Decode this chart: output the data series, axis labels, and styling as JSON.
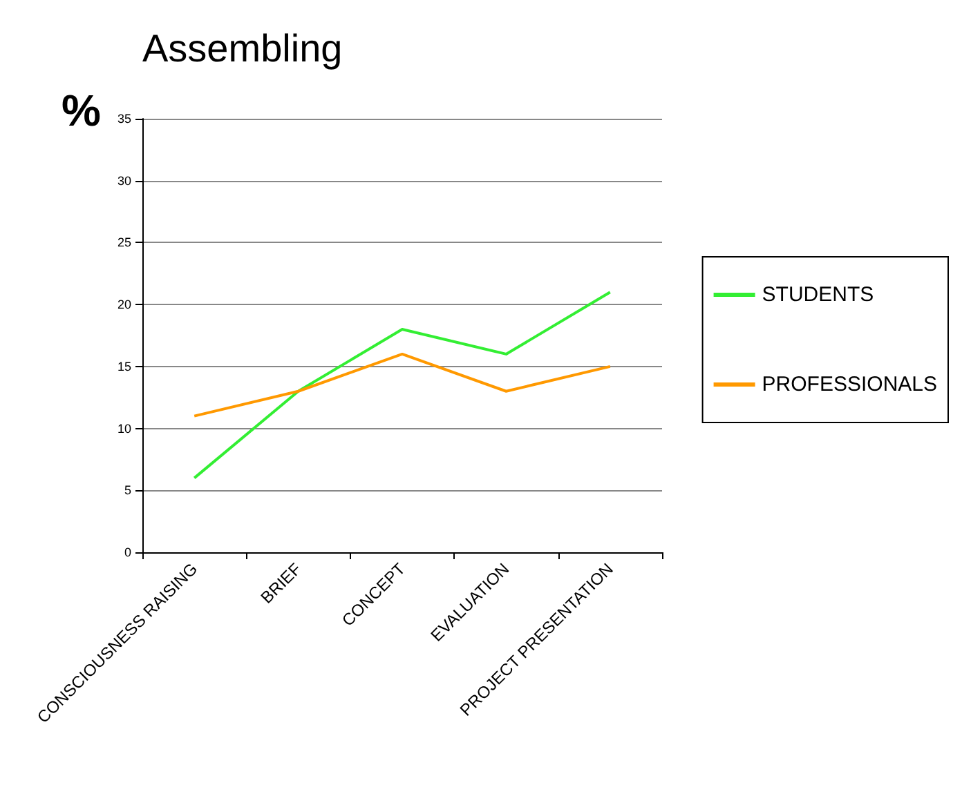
{
  "chart_data": {
    "type": "line",
    "title": "Assembling",
    "ylabel": "%",
    "categories": [
      "CONSCIOUSNESS RAISING",
      "BRIEF",
      "CONCEPT",
      "EVALUATION",
      "PROJECT PRESENTATION"
    ],
    "series": [
      {
        "name": "STUDENTS",
        "color": "#33ee33",
        "values": [
          6,
          13,
          18,
          16,
          21
        ]
      },
      {
        "name": "PROFESSIONALS",
        "color": "#ff9900",
        "values": [
          11,
          13,
          16,
          13,
          15
        ]
      }
    ],
    "ylim": [
      0,
      35
    ],
    "yticks": [
      0,
      5,
      10,
      15,
      20,
      25,
      30,
      35
    ],
    "grid": "y",
    "legend": "right",
    "marker": "none",
    "line_style": "solid"
  }
}
